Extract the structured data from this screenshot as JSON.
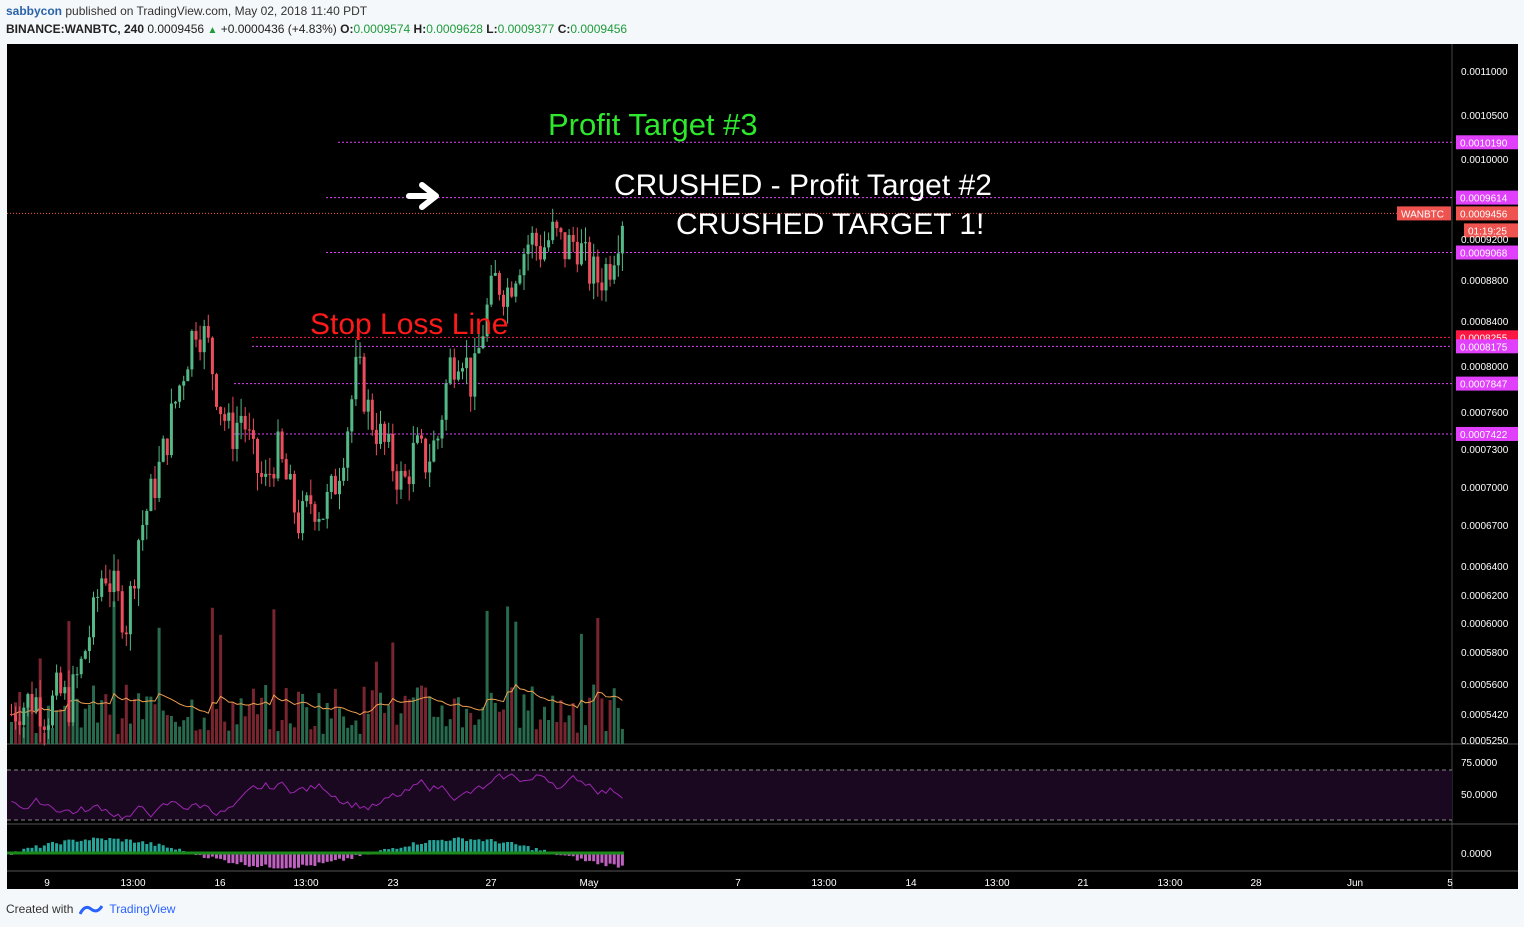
{
  "header": {
    "user": "sabbycon",
    "published": "published on TradingView.com, May 02, 2018 11:40 PDT",
    "symbol": "BINANCE:WANBTC, 240",
    "last": "0.0009456",
    "change": "+0.0000436 (+4.83%)",
    "o_label": "O:",
    "o": "0.0009574",
    "h_label": "H:",
    "h": "0.0009628",
    "l_label": "L:",
    "l": "0.0009377",
    "c_label": "C:",
    "c": "0.0009456"
  },
  "footer": {
    "created_with": "Created with",
    "brand": "TradingView"
  },
  "colors": {
    "background": "#000000",
    "up": "#53b987",
    "down": "#eb4d5c",
    "level": "#e040fb",
    "stop": "#ff1744",
    "rsi": "#9c27b0"
  },
  "chart_data": {
    "type": "candlestick",
    "symbol": "WANBTC",
    "ylim": [
      0.000515,
      0.001125
    ],
    "price_ticks": [
      "0.0011000",
      "0.0010500",
      "0.0010000",
      "0.0009200",
      "0.0008800",
      "0.0008400",
      "0.0008000",
      "0.0007600",
      "0.0007300",
      "0.0007000",
      "0.0006700",
      "0.0006400",
      "0.0006200",
      "0.0006000",
      "0.0005800",
      "0.0005600",
      "0.0005420",
      "0.0005250"
    ],
    "x_ticks": [
      "9",
      "13:00",
      "16",
      "13:00",
      "23",
      "27",
      "May",
      "7",
      "13:00",
      "14",
      "13:00",
      "21",
      "13:00",
      "28",
      "Jun",
      "5"
    ],
    "candle_path": [
      0.000542,
      0.000548,
      0.000552,
      0.00054,
      0.000555,
      0.000548,
      0.00057,
      0.0006,
      0.00064,
      0.00062,
      0.0006,
      0.00066,
      0.00069,
      0.00072,
      0.00076,
      0.0008,
      0.00084,
      0.00082,
      0.00077,
      0.00074,
      0.00076,
      0.00072,
      0.0007,
      0.00073,
      0.0007,
      0.00067,
      0.00069,
      0.00068,
      0.0007,
      0.00074,
      0.0008,
      0.00076,
      0.00074,
      0.00072,
      0.0007,
      0.00073,
      0.00072,
      0.00074,
      0.0008,
      0.00082,
      0.00078,
      0.00084,
      0.00088,
      0.00087,
      0.0009,
      0.00092,
      0.00091,
      0.000925,
      0.00091,
      0.00092,
      0.00089,
      0.00088,
      0.0009,
      0.000945
    ],
    "volume_bars": 150,
    "levels": [
      {
        "price": "0.0010190",
        "color": "#e040fb"
      },
      {
        "price": "0.0009614",
        "color": "#e040fb"
      },
      {
        "price": "0.0009068",
        "color": "#e040fb"
      },
      {
        "price": "0.0008255",
        "color": "#ff1744"
      },
      {
        "price": "0.0008175",
        "color": "#e040fb"
      },
      {
        "price": "0.0007847",
        "color": "#e040fb"
      },
      {
        "price": "0.0007422",
        "color": "#e040fb"
      }
    ],
    "current_price": "0.0009456",
    "current_label": "WANBTC",
    "countdown": "01:19:25",
    "annotations": {
      "pt3": "Profit Target #3",
      "pt2": "CRUSHED - Profit Target #2",
      "t1": "CRUSHED TARGET 1!",
      "stop": "Stop Loss Line"
    },
    "rsi_ticks": [
      "75.0000",
      "50.0000"
    ],
    "osc_tick": "0.0000"
  }
}
